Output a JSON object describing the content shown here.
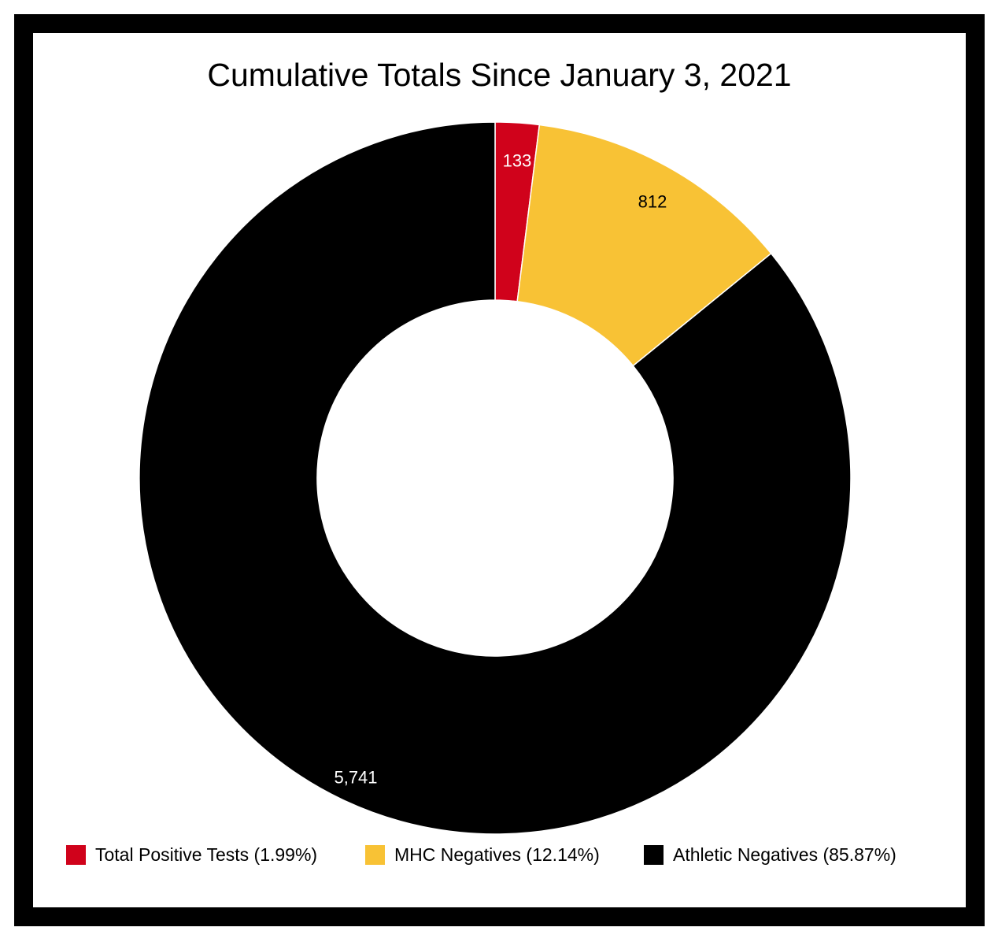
{
  "chart_data": {
    "type": "pie",
    "style": "donut",
    "title": "Cumulative Totals Since January 3, 2021",
    "slices": [
      {
        "label": "Total Positive Tests",
        "value": 133,
        "value_label": "133",
        "percent_label": "1.99%",
        "color": "#d0021b",
        "label_color": "#ffffff"
      },
      {
        "label": "MHC Negatives",
        "value": 812,
        "value_label": "812",
        "percent_label": "12.14%",
        "color": "#f8c235",
        "label_color": "#000000"
      },
      {
        "label": "Athletic Negatives",
        "value": 5741,
        "value_label": "5,741",
        "percent_label": "85.87%",
        "color": "#000000",
        "label_color": "#ffffff"
      }
    ],
    "legend": {
      "position": "bottom",
      "items": [
        "Total Positive Tests (1.99%)",
        "MHC Negatives (12.14%)",
        "Athletic Negatives (85.87%)"
      ]
    },
    "start_angle": "12 o'clock",
    "direction": "clockwise"
  }
}
